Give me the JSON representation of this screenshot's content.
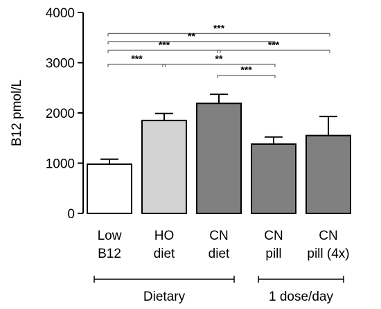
{
  "chart_data": {
    "type": "bar",
    "ylabel": "B12 pmol/L",
    "ylim": [
      0,
      4000
    ],
    "yticks": [
      0,
      1000,
      2000,
      3000,
      4000
    ],
    "grid": false,
    "bars": [
      {
        "label_lines": [
          "Low",
          "B12"
        ],
        "value": 980,
        "error": 100,
        "color": "#ffffff"
      },
      {
        "label_lines": [
          "HO",
          "diet"
        ],
        "value": 1850,
        "error": 140,
        "color": "#d3d3d3"
      },
      {
        "label_lines": [
          "CN",
          "diet"
        ],
        "value": 2190,
        "error": 180,
        "color": "#808080"
      },
      {
        "label_lines": [
          "CN",
          "pill"
        ],
        "value": 1380,
        "error": 140,
        "color": "#808080"
      },
      {
        "label_lines": [
          "CN",
          "pill (4x)"
        ],
        "value": 1550,
        "error": 380,
        "color": "#808080"
      }
    ],
    "groups": [
      {
        "label": "Dietary",
        "from": 0,
        "to": 2
      },
      {
        "label": "1 dose/day",
        "from": 3,
        "to": 4
      }
    ],
    "significance": [
      {
        "from": 0,
        "to": 4,
        "label": "***",
        "y": 3580
      },
      {
        "from": 0,
        "to": 3,
        "label": "**",
        "y": 3420
      },
      {
        "from": 0,
        "to": 2,
        "label": "***",
        "y": 3250
      },
      {
        "from": 2,
        "to": 4,
        "label": "***",
        "y": 3250
      },
      {
        "from": 0,
        "to": 1,
        "label": "***",
        "y": 2970
      },
      {
        "from": 1,
        "to": 3,
        "label": "**",
        "y": 2970
      },
      {
        "from": 2,
        "to": 3,
        "label": "***",
        "y": 2750
      }
    ]
  }
}
